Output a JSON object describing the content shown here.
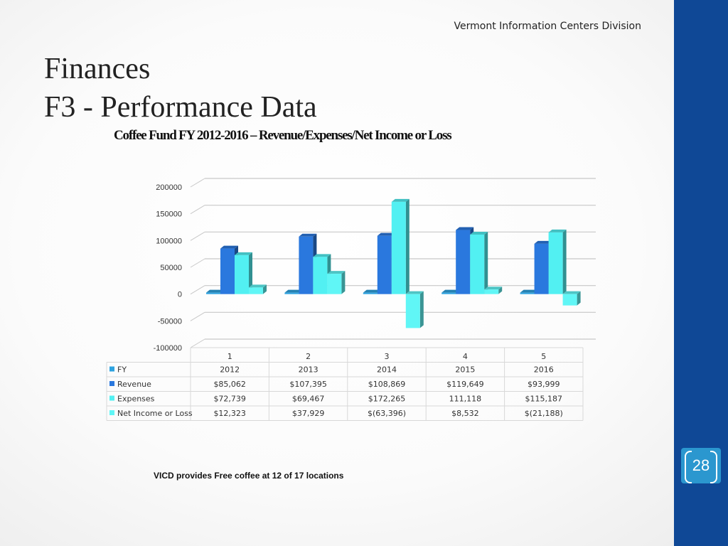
{
  "header": {
    "org": "Vermont Information Centers Division"
  },
  "slide": {
    "title_line1": "Finances",
    "title_line2": "F3 - Performance Data",
    "page_number": "28",
    "note": "VICD provides Free coffee at 12 of 17 locations"
  },
  "chart_data": {
    "type": "bar",
    "title": "Coffee Fund FY 2012-2016 – Revenue/Expenses/Net Income or Loss",
    "categories": [
      "1",
      "2",
      "3",
      "4",
      "5"
    ],
    "yticks": [
      "200000",
      "150000",
      "100000",
      "50000",
      "0",
      "-50000",
      "-100000"
    ],
    "ylim": [
      -100000,
      200000
    ],
    "grid": true,
    "series": [
      {
        "name": "FY",
        "values": [
          2012,
          2013,
          2014,
          2015,
          2016
        ],
        "labels": [
          "2012",
          "2013",
          "2014",
          "2015",
          "2016"
        ],
        "color": "#2ea3e0"
      },
      {
        "name": "Revenue",
        "values": [
          85062,
          107395,
          108869,
          119649,
          93999
        ],
        "labels": [
          "$85,062",
          "$107,395",
          "$108,869",
          "$119,649",
          "$93,999"
        ],
        "color": "#2a78de"
      },
      {
        "name": "Expenses",
        "values": [
          72739,
          69467,
          172265,
          111118,
          115187
        ],
        "labels": [
          "$72,739",
          "$69,467",
          "$172,265",
          "111,118",
          "$115,187"
        ],
        "color": "#52f0f2"
      },
      {
        "name": "Net Income or Loss",
        "values": [
          12323,
          37929,
          -63396,
          8532,
          -21188
        ],
        "labels": [
          "$12,323",
          "$37,929",
          "$(63,396)",
          "$8,532",
          "$(21,188)"
        ],
        "color": "#60f6f6"
      }
    ]
  }
}
